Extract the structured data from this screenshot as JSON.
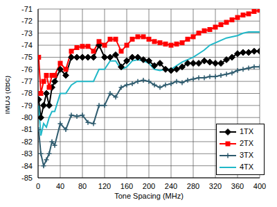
{
  "chart_data": {
    "type": "line",
    "x_label": "Tone Spacing (MHz)",
    "y_label": "IMD3 (dBc)",
    "x": [
      1,
      5,
      10,
      15,
      20,
      25,
      30,
      40,
      50,
      60,
      70,
      80,
      90,
      100,
      110,
      120,
      130,
      140,
      150,
      160,
      170,
      180,
      190,
      200,
      210,
      220,
      230,
      240,
      250,
      260,
      270,
      280,
      290,
      300,
      310,
      320,
      330,
      340,
      350,
      360,
      370,
      380,
      390,
      400
    ],
    "series": [
      {
        "name": "1TX",
        "color": "#000000",
        "marker": "diamond",
        "values": [
          -78.5,
          -80,
          -79,
          -78,
          -79,
          -77.5,
          -77,
          -76,
          -76.5,
          -75,
          -75,
          -75,
          -75,
          -75,
          -74,
          -75,
          -75,
          -74.8,
          -75.8,
          -75.3,
          -75,
          -75,
          -75.2,
          -75.3,
          -75.7,
          -75.5,
          -76,
          -76.1,
          -76,
          -75.8,
          -75.5,
          -75.5,
          -75.5,
          -75.3,
          -75.4,
          -75.5,
          -75.5,
          -75.2,
          -75,
          -74.7,
          -74.6,
          -74.6,
          -74.5,
          -74.5
        ]
      },
      {
        "name": "2TX",
        "color": "#ff0000",
        "marker": "square",
        "values": [
          -75,
          -78,
          -77,
          -76.5,
          -77.5,
          -76.5,
          -76.5,
          -75.5,
          -76,
          -74.5,
          -74.2,
          -74.1,
          -74.1,
          -74.5,
          -73.7,
          -74,
          -73.5,
          -73.5,
          -74.5,
          -74,
          -73.5,
          -73.3,
          -73.3,
          -73.5,
          -73.7,
          -73.8,
          -73.9,
          -74,
          -73.9,
          -73.8,
          -73.5,
          -73.3,
          -73,
          -72.8,
          -72.7,
          -72.5,
          -72.3,
          -72.1,
          -71.9,
          -71.7,
          -71.5,
          -71.4,
          -71.2,
          -71.1
        ]
      },
      {
        "name": "3TX",
        "color": "#2e5b6e",
        "marker": "plus",
        "values": [
          -81,
          -83,
          -84,
          -83.5,
          -83,
          -82,
          -82.3,
          -80.5,
          -81,
          -79.8,
          -79.9,
          -79.8,
          -80.4,
          -80.5,
          -79,
          -79,
          -78,
          -78.3,
          -77.5,
          -77.3,
          -77.2,
          -77,
          -76.9,
          -77,
          -77.3,
          -77.5,
          -77.3,
          -77.2,
          -77,
          -77.1,
          -76.9,
          -76.8,
          -76.7,
          -76.7,
          -76.6,
          -76.6,
          -76.5,
          -76.4,
          -76.3,
          -76.1,
          -76,
          -75.9,
          -75.8,
          -75.8
        ]
      },
      {
        "name": "4TX",
        "color": "#20b8c8",
        "marker": "none",
        "values": [
          -79,
          -81.5,
          -80.5,
          -80.8,
          -80,
          -79.5,
          -79.5,
          -78,
          -78,
          -77.3,
          -77,
          -77,
          -77,
          -77,
          -76,
          -76,
          -75.3,
          -75.3,
          -76,
          -75.8,
          -75.3,
          -75.2,
          -75.3,
          -75.5,
          -76,
          -76.1,
          -76,
          -76,
          -75.7,
          -75.4,
          -75.2,
          -75,
          -74.7,
          -74.4,
          -74,
          -73.8,
          -73.6,
          -73.4,
          -73.3,
          -73.2,
          -73,
          -72.9,
          -72.9,
          -72.9
        ]
      }
    ],
    "xlim": [
      0,
      400
    ],
    "xticks": [
      0,
      40,
      80,
      120,
      160,
      200,
      240,
      280,
      320,
      360,
      400
    ],
    "ylim": [
      -85,
      -71
    ],
    "yticks": [
      -85,
      -84,
      -83,
      -82,
      -81,
      -80,
      -79,
      -78,
      -77,
      -76,
      -75,
      -74,
      -73,
      -72,
      -71
    ],
    "grid": true,
    "legend": "lower right"
  }
}
